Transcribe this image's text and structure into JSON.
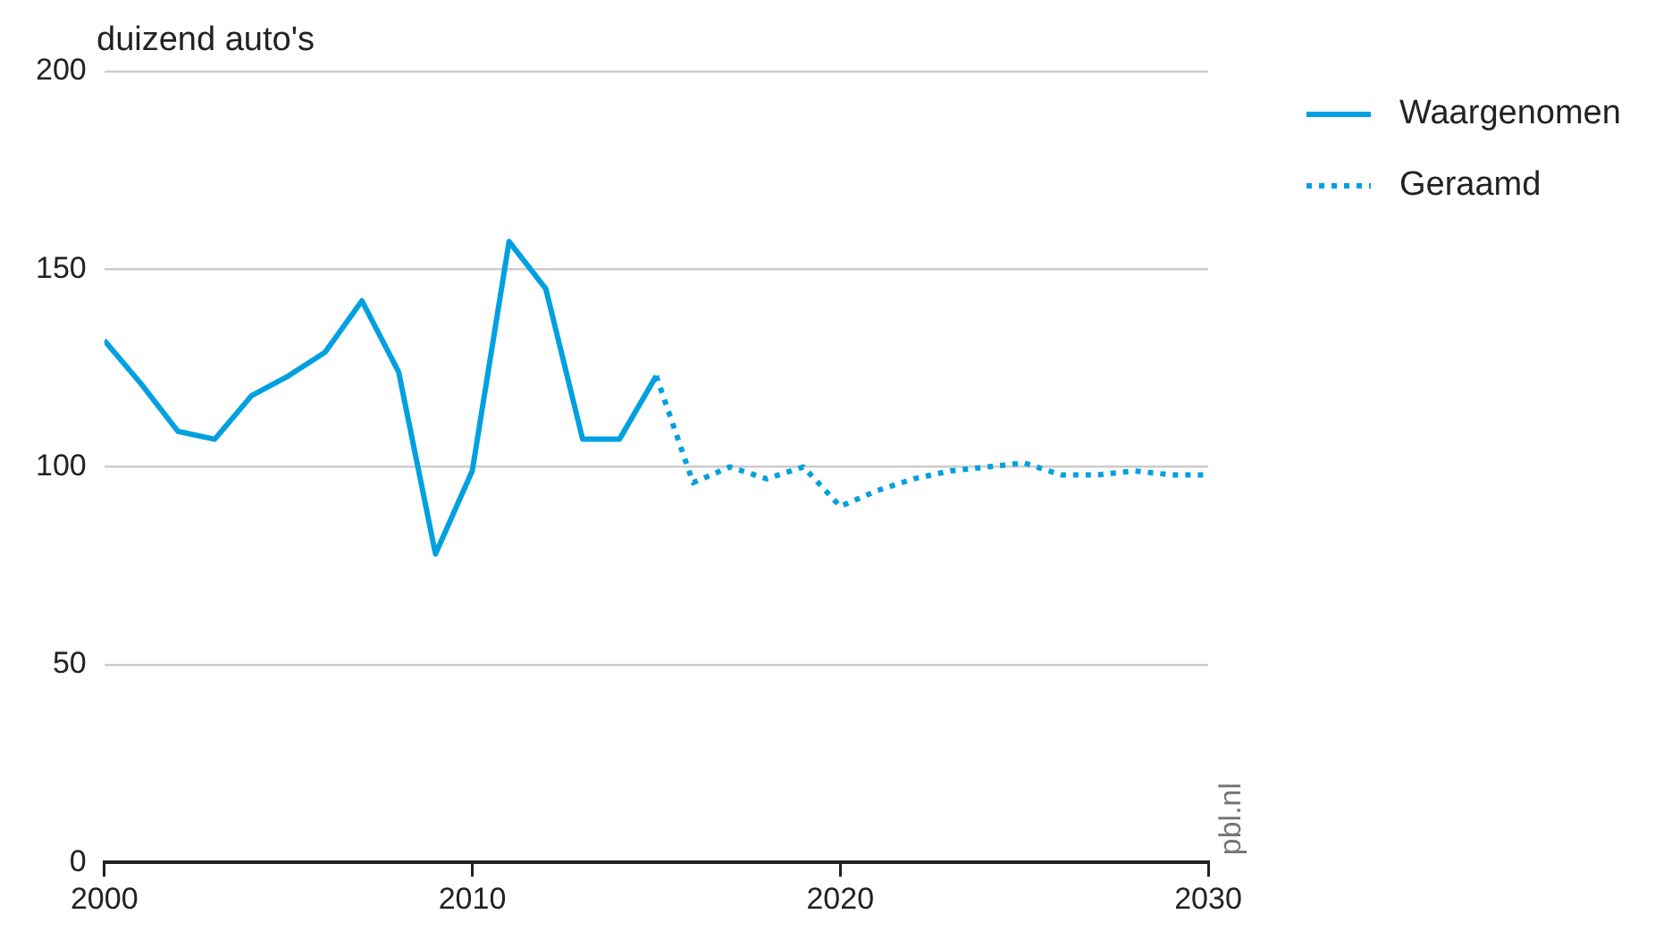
{
  "chart_data": {
    "type": "line",
    "ylabel": "duizend auto's",
    "xlim": [
      2000,
      2030
    ],
    "xticks": [
      2000,
      2010,
      2020,
      2030
    ],
    "ylim": [
      0,
      200
    ],
    "yticks": [
      0,
      50,
      100,
      150,
      200
    ],
    "grid": "y",
    "legend": "top right",
    "marker": "none",
    "annotations": [
      "pbl.nl"
    ],
    "series": [
      {
        "name": "Waargenomen",
        "color": "#00a0e1",
        "line_style": "solid",
        "x": [
          2000,
          2001,
          2002,
          2003,
          2004,
          2005,
          2006,
          2007,
          2008,
          2009,
          2010,
          2011,
          2012,
          2013,
          2014,
          2015
        ],
        "values": [
          132,
          121,
          109,
          107,
          118,
          123,
          129,
          142,
          124,
          78,
          99,
          157,
          145,
          107,
          107,
          123
        ]
      },
      {
        "name": "Geraamd",
        "color": "#00a0e1",
        "line_style": "dotted",
        "x": [
          2015,
          2016,
          2017,
          2018,
          2019,
          2020,
          2021,
          2022,
          2023,
          2024,
          2025,
          2026,
          2027,
          2028,
          2029,
          2030
        ],
        "values": [
          123,
          96,
          100,
          97,
          100,
          90,
          94,
          97,
          99,
          100,
          101,
          98,
          98,
          99,
          98,
          98
        ]
      }
    ]
  }
}
